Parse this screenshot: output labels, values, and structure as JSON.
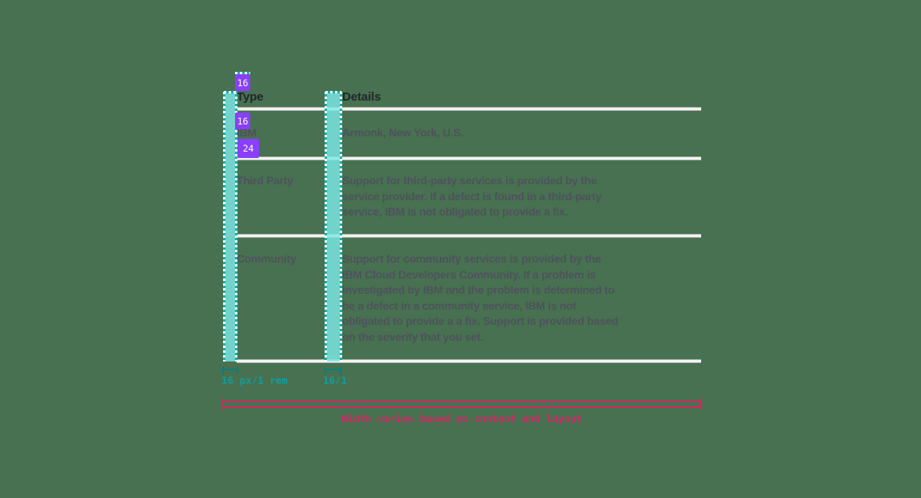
{
  "canvas": {
    "background_color": "#477150"
  },
  "table": {
    "columns": [
      "Type",
      "Details"
    ],
    "rows": [
      {
        "type": "IBM",
        "details": "Armonk, New York, U.S."
      },
      {
        "type": "Third Party",
        "details": "Support for third-party services is provided by the service provider. If a defect is found in a third-party service, IBM is not obligated to provide a fix."
      },
      {
        "type": "Community",
        "details": "Support for community services is provided by the IBM Cloud Developers Community. If a problem is investigated by IBM and the problem is determined to be a defect in a community service, IBM is not obligated to provide a a fix. Support is provided based on the severity that you set."
      }
    ]
  },
  "annotations": {
    "spacing_badges": [
      {
        "value": "16"
      },
      {
        "value": "16"
      },
      {
        "value": "24"
      }
    ],
    "measurement_labels": [
      {
        "text": "16 px/1 rem"
      },
      {
        "text": "16/1"
      }
    ],
    "width_note": "Width varies based on content and layout",
    "colors": {
      "spacer_fill_cyan": "#7de8e5",
      "spacer_dash_teal": "#00b0ac",
      "badge_purple": "#8a3ffc",
      "measurement_teal": "#129d9b",
      "note_pink": "#cf2964"
    }
  }
}
